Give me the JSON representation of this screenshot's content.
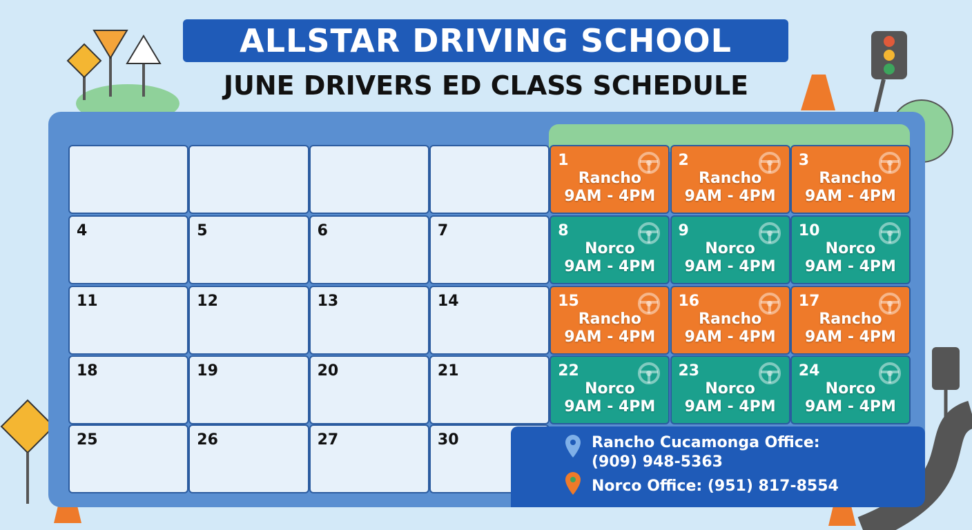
{
  "header": {
    "title": "ALLSTAR DRIVING SCHOOL",
    "subtitle": "JUNE DRIVERS ED CLASS SCHEDULE"
  },
  "calendar": {
    "rows": [
      [
        null,
        null,
        null,
        null,
        {
          "day": 1,
          "location": "Rancho",
          "time": "9AM - 4PM",
          "color": "#ee7a2a"
        },
        {
          "day": 2,
          "location": "Rancho",
          "time": "9AM - 4PM",
          "color": "#ee7a2a"
        },
        {
          "day": 3,
          "location": "Rancho",
          "time": "9AM - 4PM",
          "color": "#ee7a2a"
        }
      ],
      [
        {
          "day": 4
        },
        {
          "day": 5
        },
        {
          "day": 6
        },
        {
          "day": 7
        },
        {
          "day": 8,
          "location": "Norco",
          "time": "9AM - 4PM",
          "color": "#1ba08d"
        },
        {
          "day": 9,
          "location": "Norco",
          "time": "9AM - 4PM",
          "color": "#1ba08d"
        },
        {
          "day": 10,
          "location": "Norco",
          "time": "9AM - 4PM",
          "color": "#1ba08d"
        }
      ],
      [
        {
          "day": 11
        },
        {
          "day": 12
        },
        {
          "day": 13
        },
        {
          "day": 14
        },
        {
          "day": 15,
          "location": "Rancho",
          "time": "9AM - 4PM",
          "color": "#ee7a2a"
        },
        {
          "day": 16,
          "location": "Rancho",
          "time": "9AM - 4PM",
          "color": "#ee7a2a"
        },
        {
          "day": 17,
          "location": "Rancho",
          "time": "9AM - 4PM",
          "color": "#ee7a2a"
        }
      ],
      [
        {
          "day": 18
        },
        {
          "day": 19
        },
        {
          "day": 20
        },
        {
          "day": 21
        },
        {
          "day": 22,
          "location": "Norco",
          "time": "9AM - 4PM",
          "color": "#1ba08d"
        },
        {
          "day": 23,
          "location": "Norco",
          "time": "9AM - 4PM",
          "color": "#1ba08d"
        },
        {
          "day": 24,
          "location": "Norco",
          "time": "9AM - 4PM",
          "color": "#1ba08d"
        }
      ],
      [
        {
          "day": 25
        },
        {
          "day": 26
        },
        {
          "day": 27
        },
        {
          "day": 30
        }
      ]
    ]
  },
  "contacts": [
    {
      "label": "Rancho Cucamonga Office:",
      "phone": "(909) 948-5363"
    },
    {
      "label": "Norco Office:",
      "phone": "(951) 817-8554"
    }
  ]
}
